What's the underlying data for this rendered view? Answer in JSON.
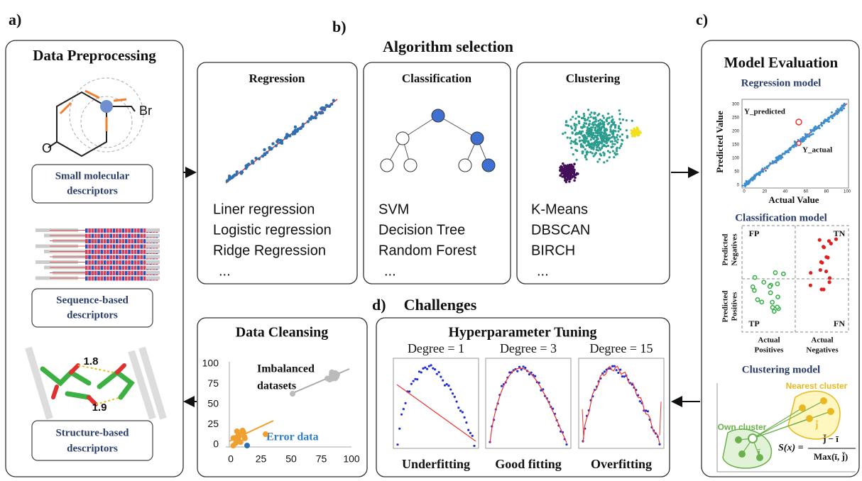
{
  "panels": {
    "a": "a)",
    "b": "b)",
    "c": "c)",
    "d": "d)"
  },
  "preprocessing": {
    "title": "Data Preprocessing",
    "atoms": [
      "O",
      "Br"
    ],
    "small": [
      "Small molecular",
      "descriptors"
    ],
    "sequence": [
      "Sequence-based",
      "descriptors"
    ],
    "distances": [
      "1.8",
      "1.9"
    ],
    "structure": [
      "Structure-based",
      "descriptors"
    ]
  },
  "algorithms": {
    "title": "Algorithm selection",
    "regression": {
      "title": "Regression",
      "items": [
        "Liner regression",
        "Logistic regression",
        "Ridge Regression",
        "..."
      ]
    },
    "classification": {
      "title": "Classification",
      "items": [
        "SVM",
        "Decision Tree",
        "Random Forest",
        "..."
      ]
    },
    "clustering": {
      "title": "Clustering",
      "items": [
        "K-Means",
        "DBSCAN",
        "BIRCH",
        "..."
      ]
    }
  },
  "challenges": {
    "title": "Challenges",
    "cleansing": {
      "title": "Data Cleansing",
      "yticks": [
        "100",
        "75",
        "50",
        "25",
        "0"
      ],
      "xticks": [
        "0",
        "25",
        "50",
        "75",
        "100"
      ],
      "imbalanced": [
        "Imbalanced",
        "datasets"
      ],
      "error": "Error data"
    },
    "tuning": {
      "title": "Hyperparameter Tuning",
      "degrees": [
        "Degree = 1",
        "Degree = 3",
        "Degree = 15"
      ],
      "fits": [
        "Underfitting",
        "Good fitting",
        "Overfitting"
      ]
    }
  },
  "evaluation": {
    "title": "Model Evaluation",
    "regression": {
      "title": "Regression model",
      "ylabel": "Predicted Value",
      "xlabel": "Actual Value",
      "yticks": [
        "300",
        "250",
        "200",
        "150",
        "100",
        "50",
        "0"
      ],
      "xticks": [
        "0",
        "20",
        "40",
        "60",
        "80",
        "100"
      ],
      "predicted": "Y_predicted",
      "actual": "Y_actual"
    },
    "classification": {
      "title": "Classification model",
      "fp": "FP",
      "tn": "TN",
      "tp": "TP",
      "fn": "FN",
      "pred_neg": [
        "Predicted",
        "Negatives"
      ],
      "pred_pos": [
        "Predicted",
        "Positives"
      ],
      "act_pos": [
        "Actual",
        "Positives"
      ],
      "act_neg": [
        "Actual",
        "Negatives"
      ]
    },
    "clustering": {
      "title": "Clustering model",
      "nearest": "Nearest cluster",
      "own": "Own cluster",
      "i": "ī",
      "j": "j̄",
      "formula_left": "S(x) =",
      "numerator": "j̄ − ī",
      "denominator": "Max(ī, j̄)"
    }
  }
}
